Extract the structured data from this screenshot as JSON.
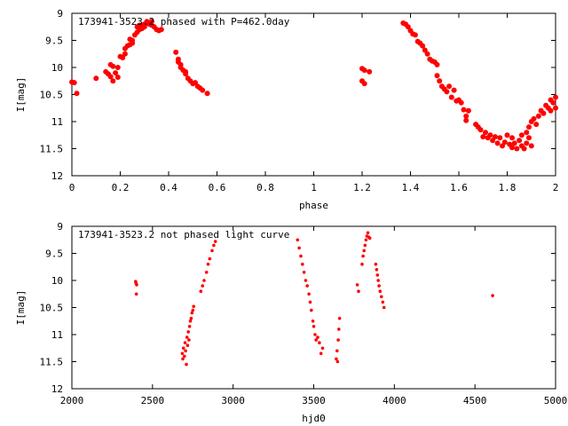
{
  "chart_data": [
    {
      "type": "scatter",
      "title": "173941-3523.2 phased with P=462.0day",
      "xlabel": "phase",
      "ylabel": "I[mag]",
      "xlim": [
        0,
        2
      ],
      "ylim": [
        12,
        9
      ],
      "y_inverted": true,
      "grid": false,
      "xticks": [
        "0",
        "0.2",
        "0.4",
        "0.6",
        "0.8",
        "1",
        "1.2",
        "1.4",
        "1.6",
        "1.8",
        "2"
      ],
      "yticks": [
        "9",
        "9.5",
        "10",
        "10.5",
        "11",
        "11.5",
        "12"
      ],
      "marker_color": "#ff0000",
      "points": [
        [
          0.0,
          10.27
        ],
        [
          0.01,
          10.28
        ],
        [
          0.02,
          10.48
        ],
        [
          0.1,
          10.2
        ],
        [
          0.14,
          10.08
        ],
        [
          0.15,
          10.12
        ],
        [
          0.16,
          9.95
        ],
        [
          0.16,
          10.17
        ],
        [
          0.17,
          10.25
        ],
        [
          0.17,
          9.98
        ],
        [
          0.18,
          10.1
        ],
        [
          0.19,
          10.0
        ],
        [
          0.19,
          10.18
        ],
        [
          0.2,
          9.8
        ],
        [
          0.21,
          9.82
        ],
        [
          0.22,
          9.75
        ],
        [
          0.22,
          9.65
        ],
        [
          0.23,
          9.6
        ],
        [
          0.24,
          9.48
        ],
        [
          0.24,
          9.58
        ],
        [
          0.25,
          9.55
        ],
        [
          0.25,
          9.5
        ],
        [
          0.26,
          9.4
        ],
        [
          0.27,
          9.25
        ],
        [
          0.27,
          9.35
        ],
        [
          0.28,
          9.3
        ],
        [
          0.28,
          9.22
        ],
        [
          0.29,
          9.28
        ],
        [
          0.3,
          9.2
        ],
        [
          0.3,
          9.25
        ],
        [
          0.31,
          9.15
        ],
        [
          0.32,
          9.2
        ],
        [
          0.33,
          9.15
        ],
        [
          0.33,
          9.22
        ],
        [
          0.34,
          9.25
        ],
        [
          0.35,
          9.3
        ],
        [
          0.36,
          9.32
        ],
        [
          0.37,
          9.3
        ],
        [
          0.43,
          9.72
        ],
        [
          0.44,
          9.85
        ],
        [
          0.44,
          9.9
        ],
        [
          0.45,
          9.95
        ],
        [
          0.45,
          10.0
        ],
        [
          0.46,
          10.05
        ],
        [
          0.47,
          10.08
        ],
        [
          0.47,
          10.12
        ],
        [
          0.48,
          10.2
        ],
        [
          0.49,
          10.25
        ],
        [
          0.5,
          10.3
        ],
        [
          0.51,
          10.28
        ],
        [
          0.52,
          10.35
        ],
        [
          0.53,
          10.38
        ],
        [
          0.54,
          10.42
        ],
        [
          0.56,
          10.48
        ],
        [
          1.2,
          10.02
        ],
        [
          1.2,
          10.25
        ],
        [
          1.21,
          10.3
        ],
        [
          1.21,
          10.05
        ],
        [
          1.23,
          10.08
        ],
        [
          1.37,
          9.18
        ],
        [
          1.38,
          9.2
        ],
        [
          1.39,
          9.25
        ],
        [
          1.4,
          9.32
        ],
        [
          1.41,
          9.38
        ],
        [
          1.42,
          9.4
        ],
        [
          1.43,
          9.52
        ],
        [
          1.44,
          9.55
        ],
        [
          1.45,
          9.6
        ],
        [
          1.46,
          9.68
        ],
        [
          1.47,
          9.75
        ],
        [
          1.48,
          9.85
        ],
        [
          1.49,
          9.88
        ],
        [
          1.5,
          9.9
        ],
        [
          1.51,
          9.95
        ],
        [
          1.51,
          10.15
        ],
        [
          1.52,
          10.25
        ],
        [
          1.53,
          10.35
        ],
        [
          1.54,
          10.4
        ],
        [
          1.55,
          10.45
        ],
        [
          1.56,
          10.35
        ],
        [
          1.57,
          10.55
        ],
        [
          1.58,
          10.42
        ],
        [
          1.59,
          10.62
        ],
        [
          1.6,
          10.6
        ],
        [
          1.61,
          10.65
        ],
        [
          1.62,
          10.78
        ],
        [
          1.63,
          10.9
        ],
        [
          1.63,
          10.98
        ],
        [
          1.64,
          10.8
        ],
        [
          1.67,
          11.05
        ],
        [
          1.68,
          11.1
        ],
        [
          1.69,
          11.15
        ],
        [
          1.7,
          11.28
        ],
        [
          1.71,
          11.2
        ],
        [
          1.72,
          11.3
        ],
        [
          1.73,
          11.25
        ],
        [
          1.74,
          11.35
        ],
        [
          1.75,
          11.28
        ],
        [
          1.76,
          11.4
        ],
        [
          1.77,
          11.3
        ],
        [
          1.78,
          11.45
        ],
        [
          1.79,
          11.38
        ],
        [
          1.8,
          11.25
        ],
        [
          1.81,
          11.42
        ],
        [
          1.82,
          11.48
        ],
        [
          1.82,
          11.3
        ],
        [
          1.83,
          11.4
        ],
        [
          1.84,
          11.5
        ],
        [
          1.85,
          11.35
        ],
        [
          1.86,
          11.25
        ],
        [
          1.86,
          11.45
        ],
        [
          1.87,
          11.5
        ],
        [
          1.88,
          11.2
        ],
        [
          1.88,
          11.4
        ],
        [
          1.89,
          11.1
        ],
        [
          1.89,
          11.3
        ],
        [
          1.9,
          11.0
        ],
        [
          1.9,
          11.45
        ],
        [
          1.91,
          10.95
        ],
        [
          1.92,
          11.05
        ],
        [
          1.93,
          10.9
        ],
        [
          1.94,
          10.8
        ],
        [
          1.95,
          10.85
        ],
        [
          1.96,
          10.7
        ],
        [
          1.97,
          10.75
        ],
        [
          1.98,
          10.6
        ],
        [
          1.98,
          10.8
        ],
        [
          1.99,
          10.65
        ],
        [
          2.0,
          10.75
        ],
        [
          2.0,
          10.55
        ]
      ]
    },
    {
      "type": "scatter",
      "title": "173941-3523.2 not phased light curve",
      "xlabel": "hjd0",
      "ylabel": "I[mag]",
      "xlim": [
        2000,
        5000
      ],
      "ylim": [
        12,
        9
      ],
      "y_inverted": true,
      "grid": false,
      "xticks": [
        "2000",
        "2500",
        "3000",
        "3500",
        "4000",
        "4500",
        "5000"
      ],
      "yticks": [
        "9",
        "9.5",
        "10",
        "10.5",
        "11",
        "11.5",
        "12"
      ],
      "marker_color": "#ff0000",
      "points": [
        [
          2395,
          10.02
        ],
        [
          2398,
          10.05
        ],
        [
          2400,
          10.25
        ],
        [
          2402,
          10.08
        ],
        [
          2685,
          11.35
        ],
        [
          2688,
          11.45
        ],
        [
          2692,
          11.25
        ],
        [
          2698,
          11.4
        ],
        [
          2702,
          11.15
        ],
        [
          2705,
          11.3
        ],
        [
          2710,
          11.55
        ],
        [
          2714,
          11.05
        ],
        [
          2718,
          11.2
        ],
        [
          2722,
          10.95
        ],
        [
          2726,
          11.1
        ],
        [
          2730,
          10.85
        ],
        [
          2735,
          10.75
        ],
        [
          2740,
          10.7
        ],
        [
          2745,
          10.6
        ],
        [
          2750,
          10.55
        ],
        [
          2755,
          10.48
        ],
        [
          2800,
          10.2
        ],
        [
          2810,
          10.1
        ],
        [
          2820,
          10.0
        ],
        [
          2835,
          9.85
        ],
        [
          2845,
          9.7
        ],
        [
          2855,
          9.6
        ],
        [
          2870,
          9.45
        ],
        [
          2880,
          9.35
        ],
        [
          2890,
          9.28
        ],
        [
          3400,
          9.25
        ],
        [
          3410,
          9.4
        ],
        [
          3420,
          9.55
        ],
        [
          3430,
          9.7
        ],
        [
          3440,
          9.85
        ],
        [
          3450,
          10.0
        ],
        [
          3460,
          10.1
        ],
        [
          3470,
          10.25
        ],
        [
          3478,
          10.4
        ],
        [
          3485,
          10.55
        ],
        [
          3495,
          10.75
        ],
        [
          3500,
          10.85
        ],
        [
          3508,
          11.0
        ],
        [
          3515,
          11.1
        ],
        [
          3525,
          11.05
        ],
        [
          3535,
          11.15
        ],
        [
          3545,
          11.35
        ],
        [
          3555,
          11.25
        ],
        [
          3640,
          11.45
        ],
        [
          3645,
          11.3
        ],
        [
          3648,
          11.5
        ],
        [
          3652,
          11.1
        ],
        [
          3656,
          10.9
        ],
        [
          3660,
          10.7
        ],
        [
          3770,
          10.08
        ],
        [
          3778,
          10.2
        ],
        [
          3800,
          9.7
        ],
        [
          3806,
          9.55
        ],
        [
          3812,
          9.45
        ],
        [
          3818,
          9.35
        ],
        [
          3824,
          9.25
        ],
        [
          3830,
          9.18
        ],
        [
          3836,
          9.12
        ],
        [
          3842,
          9.2
        ],
        [
          3848,
          9.22
        ],
        [
          3885,
          9.7
        ],
        [
          3890,
          9.8
        ],
        [
          3895,
          9.9
        ],
        [
          3900,
          10.0
        ],
        [
          3905,
          10.1
        ],
        [
          3912,
          10.2
        ],
        [
          3920,
          10.3
        ],
        [
          3928,
          10.4
        ],
        [
          3936,
          10.5
        ],
        [
          4610,
          10.28
        ]
      ]
    }
  ]
}
